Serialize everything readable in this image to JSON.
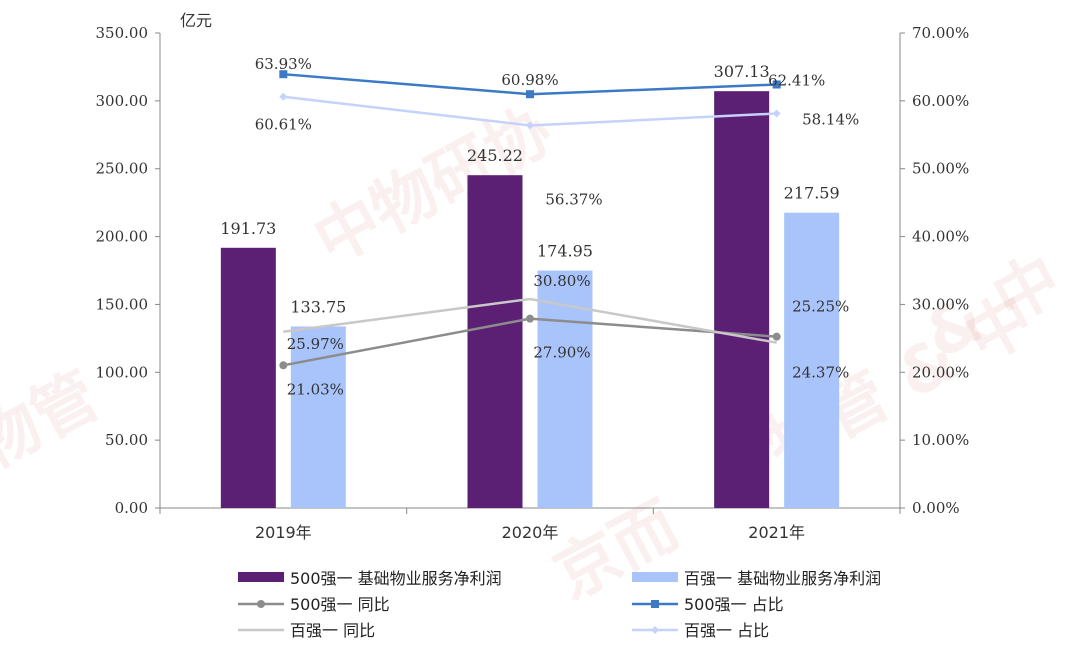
{
  "chart_data": {
    "type": "bar",
    "unit": "亿元",
    "categories": [
      "2019年",
      "2020年",
      "2021年"
    ],
    "ylim": [
      0,
      350
    ],
    "yticks": [
      "0.00",
      "50.00",
      "100.00",
      "150.00",
      "200.00",
      "250.00",
      "300.00",
      "350.00"
    ],
    "y2lim": [
      0,
      70
    ],
    "y2ticks": [
      "0.00%",
      "10.00%",
      "20.00%",
      "30.00%",
      "40.00%",
      "50.00%",
      "60.00%",
      "70.00%"
    ],
    "bar_series": [
      {
        "name": "500强一 基础物业服务净利润",
        "color": "#5b1f73",
        "values": [
          191.73,
          245.22,
          307.13
        ],
        "labels": [
          "191.73",
          "245.22",
          "307.13"
        ]
      },
      {
        "name": "百强一 基础物业服务净利润",
        "color": "#a9c4fb",
        "values": [
          133.75,
          174.95,
          217.59
        ],
        "labels": [
          "133.75",
          "174.95",
          "217.59"
        ]
      }
    ],
    "line_series": [
      {
        "name": "500强一 同比",
        "color": "#8c8c8c",
        "marker": "circle",
        "values": [
          21.03,
          27.9,
          25.25
        ],
        "labels": [
          "21.03%",
          "27.90%",
          "25.25%"
        ]
      },
      {
        "name": "500强一 占比",
        "color": "#3d7ac5",
        "marker": "square",
        "values": [
          63.93,
          60.98,
          62.41
        ],
        "labels": [
          "63.93%",
          "60.98%",
          "62.41%"
        ]
      },
      {
        "name": "百强一 同比",
        "color": "#c8c8c8",
        "marker": "none",
        "values": [
          25.97,
          30.8,
          24.37
        ],
        "labels": [
          "25.97%",
          "30.80%",
          "24.37%"
        ]
      },
      {
        "name": "百强一 占比",
        "color": "#c5d3fb",
        "marker": "diamond",
        "values": [
          60.61,
          56.37,
          58.14
        ],
        "labels": [
          "60.61%",
          "56.37%",
          "58.14%"
        ]
      }
    ],
    "legend_position": "bottom",
    "grid": false
  },
  "watermark": {
    "text1": "中物研协",
    "text2": "& 中",
    "text3": "物管",
    "text4": "京而",
    "text5": "物管 & 中"
  }
}
